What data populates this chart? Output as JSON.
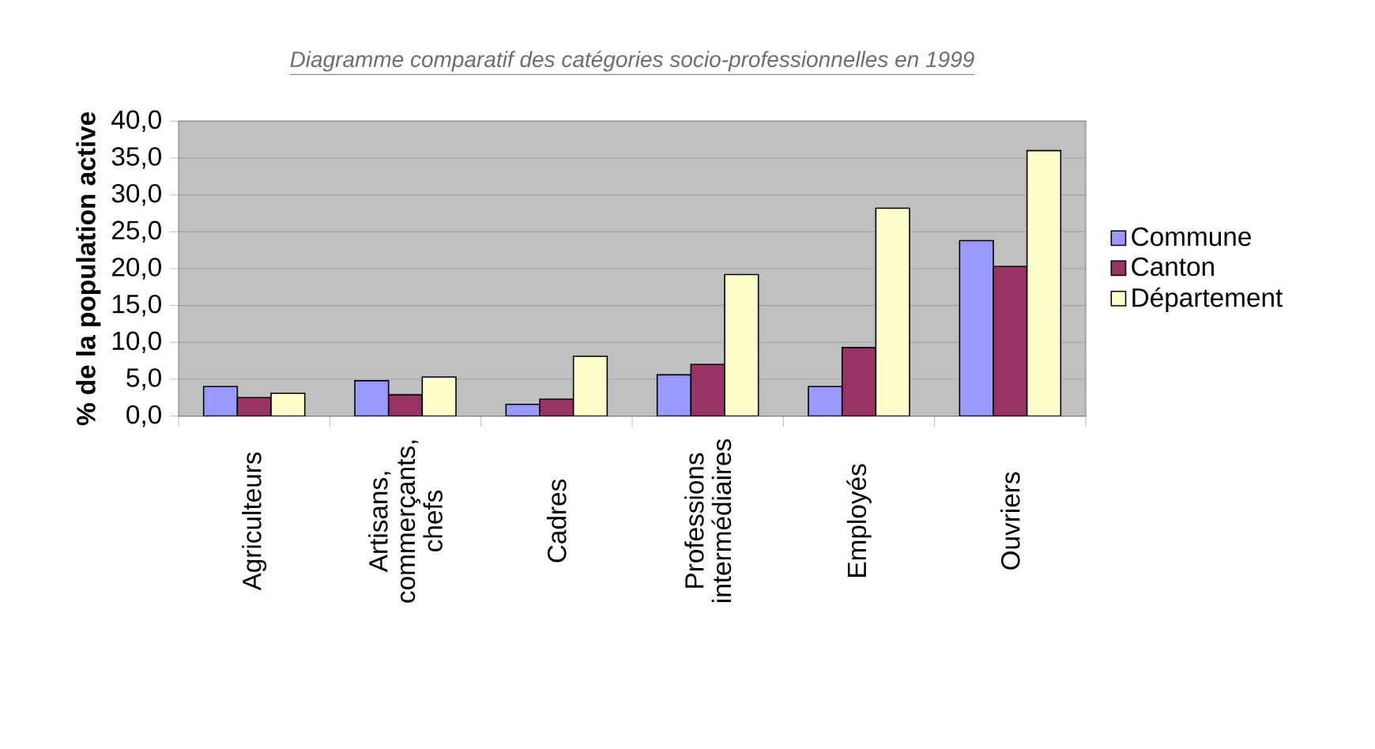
{
  "chart_data": {
    "type": "bar",
    "title": "Diagramme comparatif des catégories socio-professionnelles en 1999",
    "ylabel": "% de la population active",
    "categories": [
      "Agriculteurs",
      "Artisans, commerçants, chefs",
      "Cadres",
      "Professions intermédiaires",
      "Employés",
      "Ouvriers"
    ],
    "series": [
      {
        "name": "Commune",
        "color": "#9999ff",
        "values": [
          4.0,
          4.8,
          1.6,
          5.6,
          4.0,
          23.8
        ]
      },
      {
        "name": "Canton",
        "color": "#993366",
        "values": [
          2.5,
          2.9,
          2.3,
          7.0,
          9.3,
          20.3
        ]
      },
      {
        "name": "Département",
        "color": "#ffffcc",
        "values": [
          3.1,
          5.3,
          8.1,
          19.2,
          28.2,
          36.0
        ]
      }
    ],
    "ylim": [
      0,
      40
    ],
    "yticks": [
      {
        "value": 0,
        "label": "0,0"
      },
      {
        "value": 5,
        "label": "5,0"
      },
      {
        "value": 10,
        "label": "10,0"
      },
      {
        "value": 15,
        "label": "15,0"
      },
      {
        "value": 20,
        "label": "20,0"
      },
      {
        "value": 25,
        "label": "25,0"
      },
      {
        "value": 30,
        "label": "30,0"
      },
      {
        "value": 35,
        "label": "35,0"
      },
      {
        "value": 40,
        "label": "40,0"
      }
    ],
    "grid": "y",
    "legend": "right"
  }
}
